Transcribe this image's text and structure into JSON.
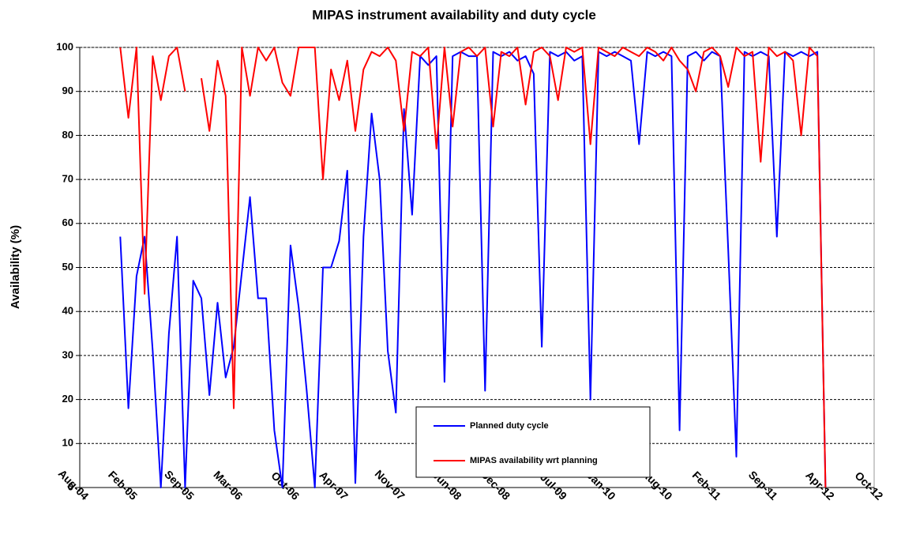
{
  "chart_data": {
    "type": "line",
    "title": "MIPAS instrument availability and duty cycle",
    "ylabel": "Availability  (%)",
    "x": [
      "2005-01",
      "2005-02",
      "2005-03",
      "2005-04",
      "2005-05",
      "2005-06",
      "2005-07",
      "2005-08",
      "2005-09",
      "2005-10",
      "2005-11",
      "2005-12",
      "2006-01",
      "2006-02",
      "2006-03",
      "2006-04",
      "2006-05",
      "2006-06",
      "2006-07",
      "2006-08",
      "2006-09",
      "2006-10",
      "2006-11",
      "2006-12",
      "2007-01",
      "2007-02",
      "2007-03",
      "2007-04",
      "2007-05",
      "2007-06",
      "2007-07",
      "2007-08",
      "2007-09",
      "2007-10",
      "2007-11",
      "2007-12",
      "2008-01",
      "2008-02",
      "2008-03",
      "2008-04",
      "2008-05",
      "2008-06",
      "2008-07",
      "2008-08",
      "2008-09",
      "2008-10",
      "2008-11",
      "2008-12",
      "2009-01",
      "2009-02",
      "2009-03",
      "2009-04",
      "2009-05",
      "2009-06",
      "2009-07",
      "2009-08",
      "2009-09",
      "2009-10",
      "2009-11",
      "2009-12",
      "2010-01",
      "2010-02",
      "2010-03",
      "2010-04",
      "2010-05",
      "2010-06",
      "2010-07",
      "2010-08",
      "2010-09",
      "2010-10",
      "2010-11",
      "2010-12",
      "2011-01",
      "2011-02",
      "2011-03",
      "2011-04",
      "2011-05",
      "2011-06",
      "2011-07",
      "2011-08",
      "2011-09",
      "2011-10",
      "2011-11",
      "2011-12",
      "2012-01",
      "2012-02",
      "2012-03",
      "2012-04"
    ],
    "series": [
      {
        "name": "Planned duty cycle",
        "color": "#0000ff",
        "values": [
          57,
          18,
          48,
          57,
          31,
          0,
          35,
          57,
          0,
          47,
          43,
          21,
          42,
          25,
          32,
          49,
          66,
          43,
          43,
          13,
          0,
          55,
          41,
          22,
          0,
          50,
          50,
          56,
          72,
          1,
          57,
          85,
          70,
          31,
          17,
          86,
          62,
          98,
          96,
          98,
          24,
          98,
          99,
          98,
          98,
          22,
          99,
          98,
          99,
          97,
          98,
          94,
          32,
          99,
          98,
          99,
          97,
          98,
          20,
          99,
          98,
          99,
          98,
          97,
          78,
          99,
          98,
          99,
          98,
          13,
          98,
          99,
          97,
          99,
          98,
          54,
          7,
          99,
          98,
          99,
          98,
          57,
          99,
          98,
          99,
          98,
          99,
          0
        ]
      },
      {
        "name": "MIPAS availability  wrt planning",
        "color": "#ff0000",
        "values": [
          100,
          84,
          100,
          44,
          98,
          88,
          98,
          100,
          90,
          null,
          93,
          81,
          97,
          89,
          18,
          100,
          89,
          100,
          97,
          100,
          92,
          89,
          100,
          100,
          100,
          70,
          95,
          88,
          97,
          81,
          95,
          99,
          98,
          100,
          97,
          81,
          99,
          98,
          100,
          77,
          100,
          82,
          99,
          100,
          98,
          100,
          82,
          99,
          98,
          100,
          87,
          99,
          100,
          98,
          88,
          100,
          99,
          100,
          78,
          100,
          99,
          98,
          100,
          99,
          98,
          100,
          99,
          97,
          100,
          97,
          95,
          90,
          99,
          100,
          98,
          91,
          100,
          98,
          99,
          74,
          100,
          98,
          99,
          97,
          80,
          100,
          98,
          0
        ]
      }
    ],
    "xlim": [
      "2004-08",
      "2012-10"
    ],
    "xticks": [
      {
        "value": "2004-08",
        "label": "Aug-04"
      },
      {
        "value": "2005-02",
        "label": "Feb-05"
      },
      {
        "value": "2005-09",
        "label": "Sep-05"
      },
      {
        "value": "2006-03",
        "label": "Mar-06"
      },
      {
        "value": "2006-10",
        "label": "Oct-06"
      },
      {
        "value": "2007-04",
        "label": "Apr-07"
      },
      {
        "value": "2007-11",
        "label": "Nov-07"
      },
      {
        "value": "2008-06",
        "label": "Jun-08"
      },
      {
        "value": "2008-12",
        "label": "Dec-08"
      },
      {
        "value": "2009-07",
        "label": "Jul-09"
      },
      {
        "value": "2010-01",
        "label": "Jan-10"
      },
      {
        "value": "2010-08",
        "label": "Aug-10"
      },
      {
        "value": "2011-02",
        "label": "Feb-11"
      },
      {
        "value": "2011-09",
        "label": "Sep-11"
      },
      {
        "value": "2012-04",
        "label": "Apr-12"
      },
      {
        "value": "2012-10",
        "label": "Oct-12"
      }
    ],
    "ylim": [
      0,
      100
    ],
    "yticks": [
      0,
      10,
      20,
      30,
      40,
      50,
      60,
      70,
      80,
      90,
      100
    ],
    "grid": true,
    "legend": "lower center"
  }
}
